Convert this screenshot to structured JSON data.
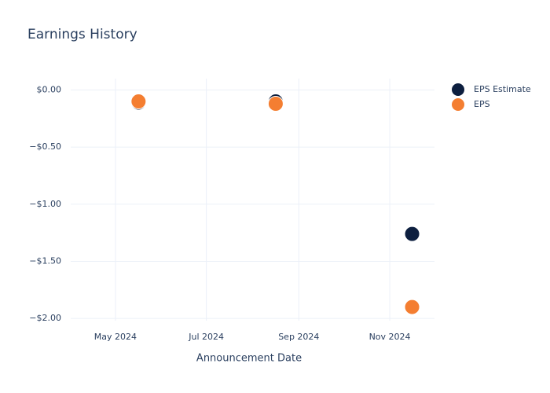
{
  "chart_data": {
    "type": "scatter",
    "title": "Earnings History",
    "x_label": "Announcement Date",
    "x": [
      "2024-05",
      "2024-08",
      "2024-11"
    ],
    "series": [
      {
        "name": "EPS Estimate",
        "color": "#0d1f3f",
        "values": [
          -0.11,
          -0.1,
          -1.26
        ]
      },
      {
        "name": "EPS",
        "color": "#f47e31",
        "values": [
          -0.1,
          -0.12,
          -1.9
        ]
      }
    ],
    "xlim": [
      "2024-04",
      "2024-12"
    ],
    "xticks": [
      {
        "value": "2024-05",
        "label": "May 2024"
      },
      {
        "value": "2024-07",
        "label": "Jul 2024"
      },
      {
        "value": "2024-09",
        "label": "Sep 2024"
      },
      {
        "value": "2024-11",
        "label": "Nov 2024"
      }
    ],
    "ylim": [
      -2.02,
      0.1
    ],
    "yticks": [
      {
        "value": 0,
        "label": "$0.00"
      },
      {
        "value": -0.5,
        "label": "−$0.50"
      },
      {
        "value": -1,
        "label": "−$1.00"
      },
      {
        "value": -1.5,
        "label": "−$1.50"
      },
      {
        "value": -2,
        "label": "−$2.00"
      }
    ],
    "grid": true,
    "legend": "top-right"
  }
}
